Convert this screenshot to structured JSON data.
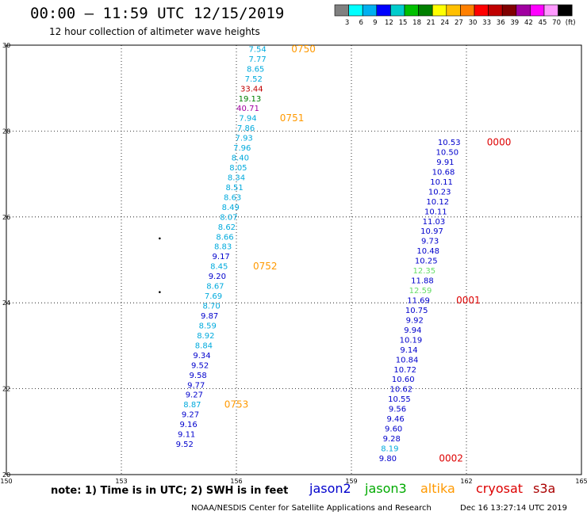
{
  "header": {
    "title": "00:00 – 11:59 UTC 12/15/2019",
    "subtitle": "12 hour collection of altimeter wave heights"
  },
  "footer": {
    "note": "note:  1) Time is in UTC;  2) SWH is in feet",
    "credit": "NOAA/NESDIS Center for Satellite Applications and Research",
    "timestamp": "Dec 16 13:27:14 UTC 2019"
  },
  "legend": {
    "colors": [
      "#808080",
      "#00ffff",
      "#00b0f0",
      "#0000ff",
      "#00cccc",
      "#00c000",
      "#008000",
      "#ffff00",
      "#ffc000",
      "#ff8000",
      "#ff0000",
      "#c00000",
      "#800000",
      "#a000a0",
      "#ff00ff",
      "#ff99ff",
      "#000000"
    ],
    "labels": [
      "3",
      "6",
      "9",
      "12",
      "15",
      "18",
      "21",
      "24",
      "27",
      "30",
      "33",
      "36",
      "39",
      "42",
      "45",
      "70",
      "(ft)"
    ]
  },
  "satellites": [
    {
      "name": "jason2",
      "color": "#0000cc"
    },
    {
      "name": "jason3",
      "color": "#00aa00"
    },
    {
      "name": "altika",
      "color": "#ff9900"
    },
    {
      "name": "cryosat",
      "color": "#dd0000"
    },
    {
      "name": "s3a",
      "color": "#aa0000"
    }
  ],
  "chart_data": {
    "type": "scatter",
    "xlim": [
      150,
      165
    ],
    "ylim": [
      20,
      30
    ],
    "x_ticks": [
      "150",
      "153",
      "156",
      "159",
      "162",
      "165"
    ],
    "y_ticks": [
      "20",
      "22",
      "24",
      "26",
      "28",
      "30"
    ],
    "grid": true,
    "points": [
      {
        "x": 156.55,
        "y": 29.9,
        "label": "7.54",
        "color": "#00aadd"
      },
      {
        "x": 156.55,
        "y": 29.67,
        "label": "7.77",
        "color": "#00aadd"
      },
      {
        "x": 156.5,
        "y": 29.44,
        "label": "8.65",
        "color": "#00aadd"
      },
      {
        "x": 156.45,
        "y": 29.21,
        "label": "7.52",
        "color": "#00aadd"
      },
      {
        "x": 156.4,
        "y": 28.98,
        "label": "33.44",
        "color": "#c00000"
      },
      {
        "x": 156.35,
        "y": 28.75,
        "label": "19.13",
        "color": "#008000"
      },
      {
        "x": 156.3,
        "y": 28.52,
        "label": "40.71",
        "color": "#a000a0"
      },
      {
        "x": 156.3,
        "y": 28.29,
        "label": "7.94",
        "color": "#00aadd"
      },
      {
        "x": 156.25,
        "y": 28.06,
        "label": "7.86",
        "color": "#00aadd"
      },
      {
        "x": 156.2,
        "y": 27.83,
        "label": "7.93",
        "color": "#00aadd"
      },
      {
        "x": 156.15,
        "y": 27.6,
        "label": "7.96",
        "color": "#00aadd"
      },
      {
        "x": 156.1,
        "y": 27.37,
        "label": "8.40",
        "color": "#00aadd"
      },
      {
        "x": 156.05,
        "y": 27.14,
        "label": "8.05",
        "color": "#00aadd"
      },
      {
        "x": 156.0,
        "y": 26.91,
        "label": "8.34",
        "color": "#00aadd"
      },
      {
        "x": 155.95,
        "y": 26.68,
        "label": "8.51",
        "color": "#00aadd"
      },
      {
        "x": 155.9,
        "y": 26.45,
        "label": "8.63",
        "color": "#00aadd"
      },
      {
        "x": 155.85,
        "y": 26.22,
        "label": "8.49",
        "color": "#00aadd"
      },
      {
        "x": 155.8,
        "y": 25.99,
        "label": "8.07",
        "color": "#00aadd"
      },
      {
        "x": 155.75,
        "y": 25.76,
        "label": "8.62",
        "color": "#00aadd"
      },
      {
        "x": 155.7,
        "y": 25.53,
        "label": "8.66",
        "color": "#00aadd"
      },
      {
        "x": 155.65,
        "y": 25.3,
        "label": "8.83",
        "color": "#00aadd"
      },
      {
        "x": 155.6,
        "y": 25.07,
        "label": "9.17",
        "color": "#0000cc"
      },
      {
        "x": 155.55,
        "y": 24.84,
        "label": "8.45",
        "color": "#00aadd"
      },
      {
        "x": 155.5,
        "y": 24.61,
        "label": "9.20",
        "color": "#0000cc"
      },
      {
        "x": 155.45,
        "y": 24.38,
        "label": "8.67",
        "color": "#00aadd"
      },
      {
        "x": 155.4,
        "y": 24.15,
        "label": "7.69",
        "color": "#00aadd"
      },
      {
        "x": 155.35,
        "y": 23.92,
        "label": "8.70",
        "color": "#00aadd"
      },
      {
        "x": 155.3,
        "y": 23.69,
        "label": "9.87",
        "color": "#0000cc"
      },
      {
        "x": 155.25,
        "y": 23.46,
        "label": "8.59",
        "color": "#00aadd"
      },
      {
        "x": 155.2,
        "y": 23.23,
        "label": "8.92",
        "color": "#00aadd"
      },
      {
        "x": 155.15,
        "y": 23.0,
        "label": "8.84",
        "color": "#00aadd"
      },
      {
        "x": 155.1,
        "y": 22.77,
        "label": "9.34",
        "color": "#0000cc"
      },
      {
        "x": 155.05,
        "y": 22.54,
        "label": "9.52",
        "color": "#0000cc"
      },
      {
        "x": 155.0,
        "y": 22.31,
        "label": "9.58",
        "color": "#0000cc"
      },
      {
        "x": 154.95,
        "y": 22.08,
        "label": "9.77",
        "color": "#0000cc"
      },
      {
        "x": 154.9,
        "y": 21.85,
        "label": "9.27",
        "color": "#0000cc"
      },
      {
        "x": 154.85,
        "y": 21.62,
        "label": "8.87",
        "color": "#00aadd"
      },
      {
        "x": 154.8,
        "y": 21.39,
        "label": "9.27",
        "color": "#0000cc"
      },
      {
        "x": 154.75,
        "y": 21.16,
        "label": "9.16",
        "color": "#0000cc"
      },
      {
        "x": 154.7,
        "y": 20.93,
        "label": "9.11",
        "color": "#0000cc"
      },
      {
        "x": 154.65,
        "y": 20.7,
        "label": "9.52",
        "color": "#0000cc"
      },
      {
        "x": 161.55,
        "y": 27.73,
        "label": "10.53",
        "color": "#0000cc"
      },
      {
        "x": 161.5,
        "y": 27.5,
        "label": "10.50",
        "color": "#0000cc"
      },
      {
        "x": 161.45,
        "y": 27.27,
        "label": "9.91",
        "color": "#0000cc"
      },
      {
        "x": 161.4,
        "y": 27.04,
        "label": "10.68",
        "color": "#0000cc"
      },
      {
        "x": 161.35,
        "y": 26.81,
        "label": "10.11",
        "color": "#0000cc"
      },
      {
        "x": 161.3,
        "y": 26.58,
        "label": "10.23",
        "color": "#0000cc"
      },
      {
        "x": 161.25,
        "y": 26.35,
        "label": "10.12",
        "color": "#0000cc"
      },
      {
        "x": 161.2,
        "y": 26.12,
        "label": "10.11",
        "color": "#0000cc"
      },
      {
        "x": 161.15,
        "y": 25.89,
        "label": "11.03",
        "color": "#0000cc"
      },
      {
        "x": 161.1,
        "y": 25.66,
        "label": "10.97",
        "color": "#0000cc"
      },
      {
        "x": 161.05,
        "y": 25.43,
        "label": "9.73",
        "color": "#0000cc"
      },
      {
        "x": 161.0,
        "y": 25.2,
        "label": "10.48",
        "color": "#0000cc"
      },
      {
        "x": 160.95,
        "y": 24.97,
        "label": "10.25",
        "color": "#0000cc"
      },
      {
        "x": 160.9,
        "y": 24.74,
        "label": "12.35",
        "color": "#66dd66"
      },
      {
        "x": 160.85,
        "y": 24.51,
        "label": "11.88",
        "color": "#0000cc"
      },
      {
        "x": 160.8,
        "y": 24.28,
        "label": "12.59",
        "color": "#66dd66"
      },
      {
        "x": 160.75,
        "y": 24.05,
        "label": "11.69",
        "color": "#0000cc"
      },
      {
        "x": 160.7,
        "y": 23.82,
        "label": "10.75",
        "color": "#0000cc"
      },
      {
        "x": 160.65,
        "y": 23.59,
        "label": "9.92",
        "color": "#0000cc"
      },
      {
        "x": 160.6,
        "y": 23.36,
        "label": "9.94",
        "color": "#0000cc"
      },
      {
        "x": 160.55,
        "y": 23.13,
        "label": "10.19",
        "color": "#0000cc"
      },
      {
        "x": 160.5,
        "y": 22.9,
        "label": "9.14",
        "color": "#0000cc"
      },
      {
        "x": 160.45,
        "y": 22.67,
        "label": "10.84",
        "color": "#0000cc"
      },
      {
        "x": 160.4,
        "y": 22.44,
        "label": "10.72",
        "color": "#0000cc"
      },
      {
        "x": 160.35,
        "y": 22.21,
        "label": "10.60",
        "color": "#0000cc"
      },
      {
        "x": 160.3,
        "y": 21.98,
        "label": "10.62",
        "color": "#0000cc"
      },
      {
        "x": 160.25,
        "y": 21.75,
        "label": "10.55",
        "color": "#0000cc"
      },
      {
        "x": 160.2,
        "y": 21.52,
        "label": "9.56",
        "color": "#0000cc"
      },
      {
        "x": 160.15,
        "y": 21.29,
        "label": "9.46",
        "color": "#0000cc"
      },
      {
        "x": 160.1,
        "y": 21.06,
        "label": "9.60",
        "color": "#0000cc"
      },
      {
        "x": 160.05,
        "y": 20.83,
        "label": "9.28",
        "color": "#0000cc"
      },
      {
        "x": 160.0,
        "y": 20.6,
        "label": "8.19",
        "color": "#00aadd"
      },
      {
        "x": 159.95,
        "y": 20.37,
        "label": "9.80",
        "color": "#0000cc"
      }
    ],
    "time_marks": [
      {
        "x": 157.75,
        "y": 29.9,
        "label": "0750",
        "color": "#ff9900"
      },
      {
        "x": 157.45,
        "y": 28.29,
        "label": "0751",
        "color": "#ff9900"
      },
      {
        "x": 156.75,
        "y": 24.84,
        "label": "0752",
        "color": "#ff9900"
      },
      {
        "x": 156.0,
        "y": 21.62,
        "label": "0753",
        "color": "#ff9900"
      },
      {
        "x": 162.85,
        "y": 27.73,
        "label": "0000",
        "color": "#dd0000"
      },
      {
        "x": 162.05,
        "y": 24.05,
        "label": "0001",
        "color": "#dd0000"
      },
      {
        "x": 161.6,
        "y": 20.37,
        "label": "0002",
        "color": "#dd0000"
      }
    ],
    "dots": [
      {
        "x": 154.0,
        "y": 25.5
      },
      {
        "x": 154.0,
        "y": 24.25
      }
    ]
  }
}
